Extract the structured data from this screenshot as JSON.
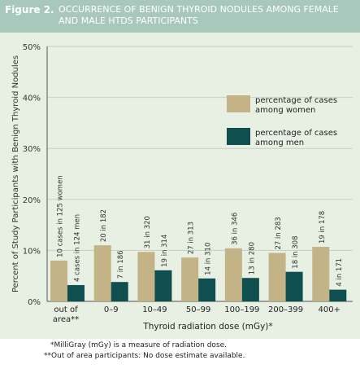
{
  "figure_label": "Figure 2.",
  "title": "OCCURRENCE OF BENIGN THYROID NODULES AMONG FEMALE AND MALE HTDS PARTICIPANTS",
  "footnotes": {
    "note1": "*MilliGray (mGy) is a measure of radiation dose.",
    "note2": "**Out of area participants: No dose estimate available."
  },
  "colors": {
    "women": "#c3b386",
    "men": "#0f4f50",
    "title_bar": "#a9c8bd",
    "panel": "#e8f0e4"
  },
  "chart_data": {
    "type": "bar",
    "xlabel": "Thyroid radiation dose (mGy)*",
    "ylabel": "Percent of Study Participants with Benign Thyroid Nodules",
    "ylim": [
      0,
      50
    ],
    "yticks": [
      "0%",
      "10%",
      "20%",
      "30%",
      "40%",
      "50%"
    ],
    "categories": [
      "out of area**",
      "0–9",
      "10–49",
      "50–99",
      "100–199",
      "200–399",
      "400+"
    ],
    "series": [
      {
        "name": "percentage of cases among women",
        "values": [
          8.0,
          11.0,
          9.7,
          8.6,
          10.4,
          9.5,
          10.7
        ],
        "labels": [
          "10 cases in 125 women",
          "20 in 182",
          "31 in 320",
          "27 in 313",
          "36 in 346",
          "27 in 283",
          "19 in 178"
        ]
      },
      {
        "name": "percentage of cases among men",
        "values": [
          3.2,
          3.8,
          6.1,
          4.5,
          4.6,
          5.8,
          2.3
        ],
        "labels": [
          "4 cases in 124 men",
          "7 in 186",
          "19 in 314",
          "14 in 310",
          "13 in 280",
          "18 in 308",
          "4 in 171"
        ]
      }
    ],
    "legend_position": "right"
  }
}
